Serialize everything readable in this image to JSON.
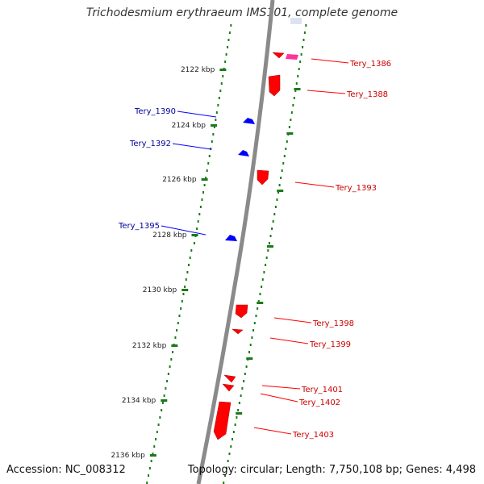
{
  "title": "Trichodesmium erythraeum IMS101, complete genome",
  "accession_label": "Accession: NC_008312",
  "summary_label": "Topology: circular; Length: 7,750,108 bp; Genes: 4,498",
  "colors": {
    "forward_gene": "#ff0000",
    "reverse_gene": "#0000ff",
    "other_feature": "#ff3399",
    "forward_label": "#cc0000",
    "reverse_label": "#000099",
    "backbone": "#8a8a8a",
    "tick": "#1a7a1a",
    "tick_label": "#222222"
  },
  "ticks": [
    {
      "label": "2122 kbp"
    },
    {
      "label": "2124 kbp"
    },
    {
      "label": "2126 kbp"
    },
    {
      "label": "2128 kbp"
    },
    {
      "label": "2130 kbp"
    },
    {
      "label": "2132 kbp"
    },
    {
      "label": "2134 kbp"
    },
    {
      "label": "2136 kbp"
    }
  ],
  "forward_genes": [
    {
      "name": "Tery_1386"
    },
    {
      "name": "Tery_1388"
    },
    {
      "name": "Tery_1393"
    },
    {
      "name": "Tery_1398"
    },
    {
      "name": "Tery_1399"
    },
    {
      "name": "Tery_1401"
    },
    {
      "name": "Tery_1402"
    },
    {
      "name": "Tery_1403"
    }
  ],
  "reverse_genes": [
    {
      "name": "Tery_1390"
    },
    {
      "name": "Tery_1392"
    },
    {
      "name": "Tery_1395"
    }
  ]
}
